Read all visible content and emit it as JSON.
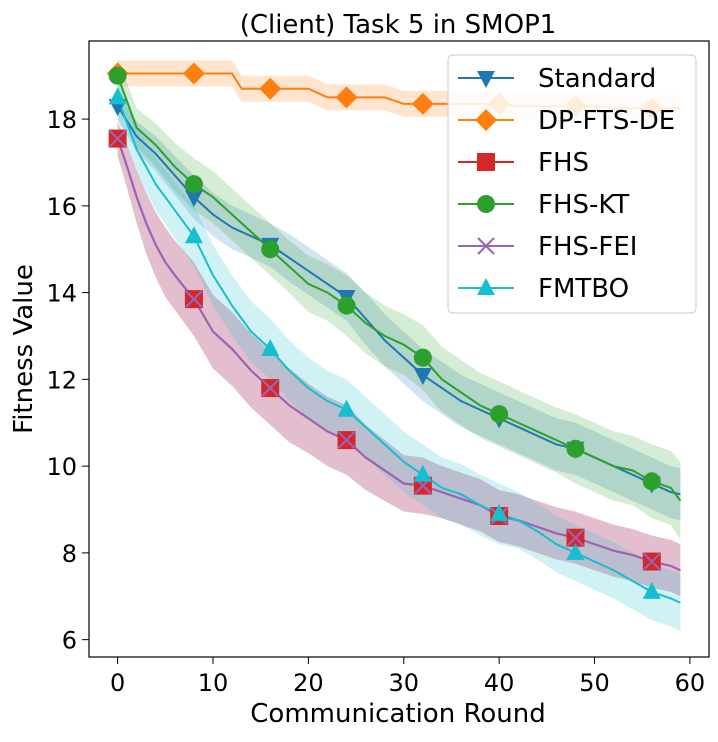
{
  "chart_data": {
    "type": "line",
    "title": "(Client) Task 5 in SMOP1",
    "xlabel": "Communication Round",
    "ylabel": "Fitness Value",
    "xlim": [
      -3,
      62
    ],
    "ylim": [
      5.6,
      19.8
    ],
    "xticks": [
      0,
      10,
      20,
      30,
      40,
      50,
      60
    ],
    "yticks": [
      6,
      8,
      10,
      12,
      14,
      16,
      18
    ],
    "grid": false,
    "legend_position": "top-right",
    "marker_x": [
      0,
      8,
      16,
      24,
      32,
      40,
      48,
      56
    ],
    "series": [
      {
        "name": "Standard",
        "color": "#1f77b4",
        "marker": "triangle-down",
        "x": [
          0,
          2,
          4,
          6,
          8,
          10,
          12,
          14,
          16,
          18,
          20,
          22,
          24,
          26,
          28,
          30,
          32,
          34,
          36,
          38,
          40,
          42,
          44,
          46,
          48,
          50,
          52,
          54,
          56,
          58,
          59
        ],
        "y": [
          18.3,
          17.6,
          17.2,
          16.7,
          16.2,
          15.8,
          15.5,
          15.3,
          15.1,
          14.8,
          14.5,
          14.2,
          13.9,
          13.4,
          12.9,
          12.5,
          12.1,
          11.8,
          11.5,
          11.3,
          11.1,
          10.9,
          10.7,
          10.5,
          10.4,
          10.2,
          10.0,
          9.8,
          9.6,
          9.4,
          9.35
        ],
        "band": [
          0.3,
          0.35,
          0.4,
          0.45,
          0.5,
          0.5,
          0.5,
          0.5,
          0.5,
          0.55,
          0.55,
          0.55,
          0.55,
          0.6,
          0.6,
          0.6,
          0.6,
          0.6,
          0.6,
          0.6,
          0.6,
          0.6,
          0.6,
          0.6,
          0.6,
          0.6,
          0.6,
          0.6,
          0.6,
          0.6,
          0.6
        ]
      },
      {
        "name": "DP-FTS-DE",
        "color": "#ff7f0e",
        "marker": "diamond",
        "x": [
          0,
          12,
          13,
          20,
          22,
          28,
          30,
          40,
          42,
          50,
          52,
          59
        ],
        "y": [
          19.05,
          19.05,
          18.7,
          18.7,
          18.5,
          18.5,
          18.35,
          18.35,
          18.3,
          18.3,
          18.25,
          18.25
        ],
        "band": [
          0.3,
          0.3,
          0.3,
          0.3,
          0.3,
          0.3,
          0.3,
          0.3,
          0.3,
          0.3,
          0.3,
          0.3
        ]
      },
      {
        "name": "FHS",
        "color": "#d62728",
        "marker": "square",
        "x": [
          0,
          1,
          2,
          3,
          4,
          5,
          6,
          8,
          10,
          12,
          14,
          16,
          18,
          20,
          22,
          24,
          26,
          28,
          30,
          32,
          34,
          36,
          38,
          40,
          42,
          44,
          46,
          48,
          50,
          52,
          54,
          56,
          58,
          59
        ],
        "y": [
          17.55,
          16.9,
          16.2,
          15.6,
          15.1,
          14.7,
          14.4,
          13.85,
          13.1,
          12.7,
          12.2,
          11.8,
          11.4,
          11.1,
          10.8,
          10.6,
          10.2,
          9.9,
          9.6,
          9.55,
          9.4,
          9.25,
          9.1,
          8.85,
          8.75,
          8.6,
          8.45,
          8.35,
          8.2,
          8.05,
          7.95,
          7.8,
          7.7,
          7.6
        ],
        "band": [
          0.4,
          0.5,
          0.6,
          0.7,
          0.75,
          0.8,
          0.8,
          0.85,
          0.85,
          0.85,
          0.85,
          0.85,
          0.85,
          0.8,
          0.8,
          0.8,
          0.75,
          0.7,
          0.65,
          0.65,
          0.6,
          0.6,
          0.6,
          0.6,
          0.6,
          0.6,
          0.6,
          0.6,
          0.6,
          0.6,
          0.6,
          0.6,
          0.6,
          0.6
        ]
      },
      {
        "name": "FHS-KT",
        "color": "#2ca02c",
        "marker": "circle",
        "x": [
          0,
          2,
          4,
          6,
          8,
          10,
          12,
          14,
          16,
          18,
          20,
          22,
          24,
          26,
          28,
          30,
          32,
          34,
          36,
          38,
          40,
          42,
          44,
          46,
          48,
          50,
          52,
          54,
          56,
          58,
          59
        ],
        "y": [
          19.0,
          17.8,
          17.4,
          16.9,
          16.5,
          16.2,
          15.8,
          15.4,
          15.0,
          14.6,
          14.2,
          14.0,
          13.7,
          13.3,
          13.0,
          12.8,
          12.5,
          12.0,
          11.7,
          11.4,
          11.2,
          11.0,
          10.8,
          10.6,
          10.4,
          10.2,
          10.0,
          9.9,
          9.65,
          9.5,
          9.2
        ],
        "band": [
          0.4,
          0.45,
          0.5,
          0.55,
          0.6,
          0.6,
          0.6,
          0.6,
          0.6,
          0.6,
          0.65,
          0.65,
          0.7,
          0.7,
          0.7,
          0.7,
          0.75,
          0.75,
          0.75,
          0.75,
          0.75,
          0.75,
          0.75,
          0.75,
          0.8,
          0.8,
          0.8,
          0.8,
          0.85,
          0.85,
          0.9
        ]
      },
      {
        "name": "FHS-FEI",
        "color": "#9467bd",
        "marker": "x",
        "x": [
          0,
          1,
          2,
          3,
          4,
          5,
          6,
          8,
          10,
          12,
          14,
          16,
          18,
          20,
          22,
          24,
          26,
          28,
          30,
          32,
          34,
          36,
          38,
          40,
          42,
          44,
          46,
          48,
          50,
          52,
          54,
          56,
          58,
          59
        ],
        "y": [
          17.55,
          16.9,
          16.2,
          15.6,
          15.1,
          14.7,
          14.4,
          13.85,
          13.1,
          12.7,
          12.2,
          11.8,
          11.4,
          11.1,
          10.8,
          10.6,
          10.2,
          9.9,
          9.6,
          9.55,
          9.4,
          9.25,
          9.1,
          8.85,
          8.75,
          8.6,
          8.45,
          8.35,
          8.2,
          8.05,
          7.95,
          7.8,
          7.7,
          7.6
        ],
        "band": [
          0.4,
          0.5,
          0.6,
          0.7,
          0.75,
          0.8,
          0.8,
          0.85,
          0.85,
          0.85,
          0.85,
          0.85,
          0.85,
          0.8,
          0.8,
          0.8,
          0.75,
          0.7,
          0.65,
          0.65,
          0.6,
          0.6,
          0.6,
          0.6,
          0.6,
          0.6,
          0.6,
          0.6,
          0.6,
          0.6,
          0.6,
          0.6,
          0.6,
          0.6
        ]
      },
      {
        "name": "FMTBO",
        "color": "#17becf",
        "marker": "triangle-up",
        "x": [
          0,
          2,
          4,
          6,
          8,
          10,
          12,
          14,
          16,
          18,
          20,
          22,
          24,
          26,
          28,
          30,
          32,
          34,
          36,
          38,
          40,
          42,
          44,
          46,
          48,
          50,
          52,
          54,
          56,
          58,
          59
        ],
        "y": [
          18.5,
          17.3,
          16.5,
          15.9,
          15.3,
          14.4,
          13.7,
          13.1,
          12.7,
          12.2,
          11.8,
          11.5,
          11.3,
          10.9,
          10.5,
          10.1,
          9.8,
          9.5,
          9.35,
          9.1,
          8.9,
          8.75,
          8.5,
          8.2,
          8.0,
          7.8,
          7.6,
          7.35,
          7.1,
          6.95,
          6.85
        ],
        "band": [
          0.5,
          0.55,
          0.6,
          0.65,
          0.7,
          0.7,
          0.7,
          0.7,
          0.7,
          0.7,
          0.7,
          0.7,
          0.7,
          0.7,
          0.7,
          0.7,
          0.7,
          0.7,
          0.7,
          0.7,
          0.7,
          0.65,
          0.65,
          0.65,
          0.65,
          0.65,
          0.65,
          0.65,
          0.65,
          0.65,
          0.65
        ]
      }
    ]
  }
}
